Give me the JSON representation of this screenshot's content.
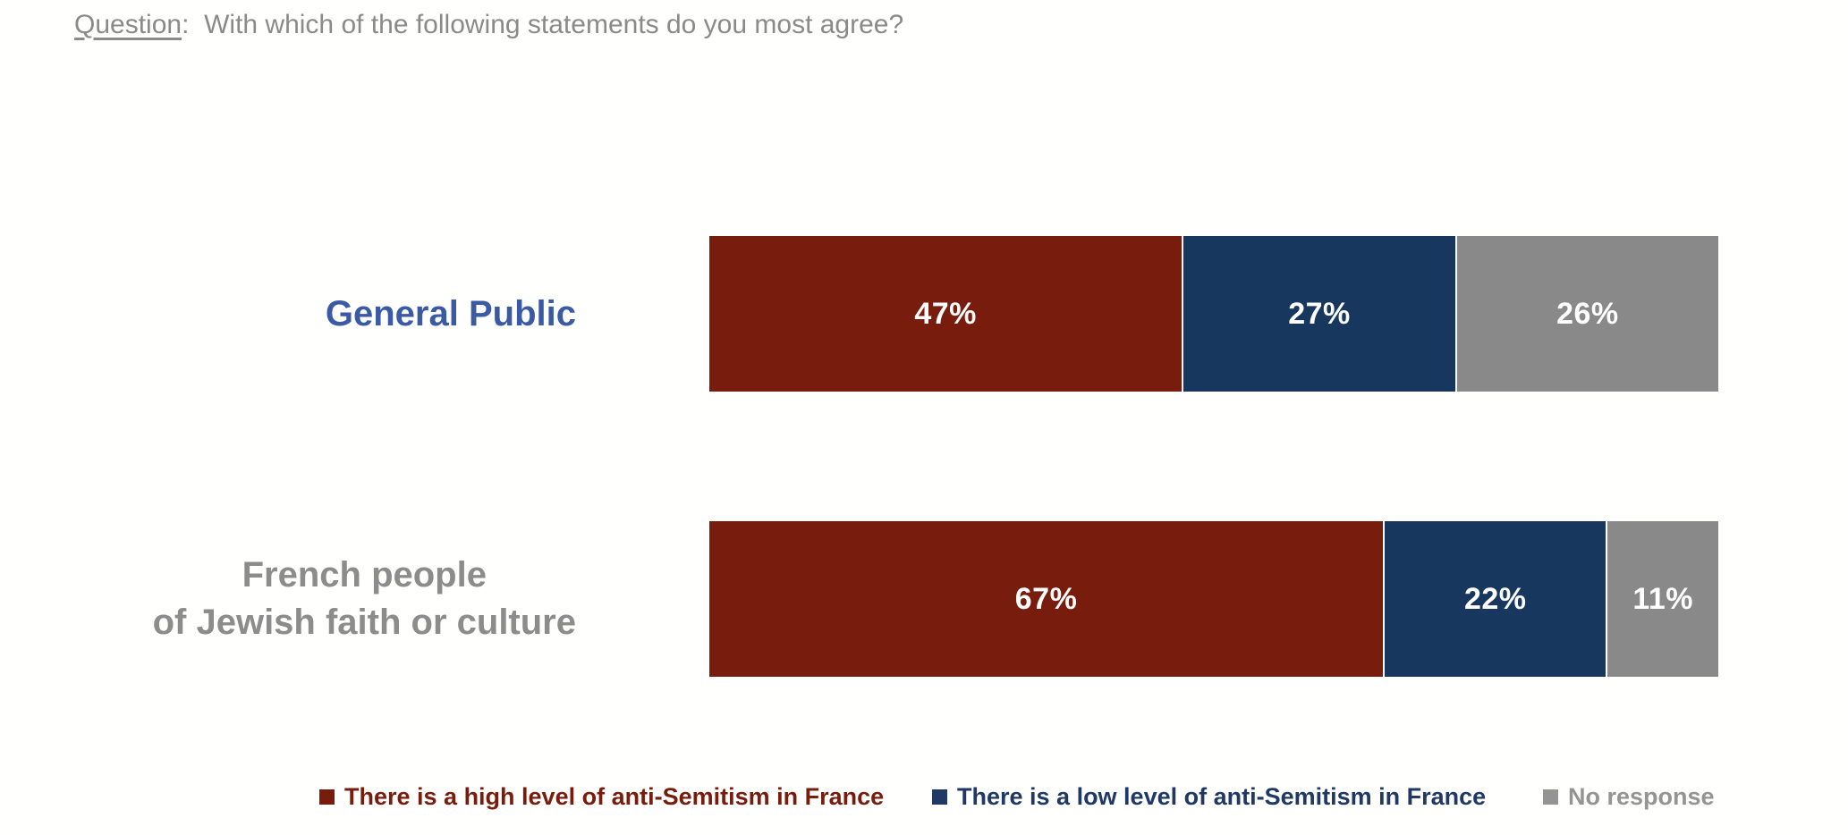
{
  "question": {
    "label": "Question",
    "rest": ":  With which of the following statements do you most agree?"
  },
  "colors": {
    "question_text": "#8a8a8a",
    "background": "#fffffe",
    "value_label_text": "#ffffff"
  },
  "chart_data": {
    "type": "bar",
    "orientation": "horizontal-stacked",
    "title": "",
    "xlabel": "",
    "ylabel": "",
    "xlim": [
      0,
      100
    ],
    "grid": false,
    "legend_position": "bottom",
    "value_suffix": "%",
    "categories": [
      "General Public",
      "French people\nof Jewish faith or culture"
    ],
    "category_colors": [
      "#3b5aa5",
      "#8c8c8c"
    ],
    "series": [
      {
        "name": "There is a high level of anti-Semitism in France",
        "color": "#781c0e",
        "legend_color": "#781c0e",
        "values": [
          47,
          67
        ]
      },
      {
        "name": "There is a low level of anti-Semitism in France",
        "color": "#17375e",
        "legend_color": "#1f3864",
        "values": [
          27,
          22
        ]
      },
      {
        "name": "No response",
        "color": "#898989",
        "legend_color": "#949494",
        "values": [
          26,
          11
        ]
      }
    ],
    "value_labels": [
      [
        "47%",
        "27%",
        "26%"
      ],
      [
        "67%",
        "22%",
        "11%"
      ]
    ]
  }
}
